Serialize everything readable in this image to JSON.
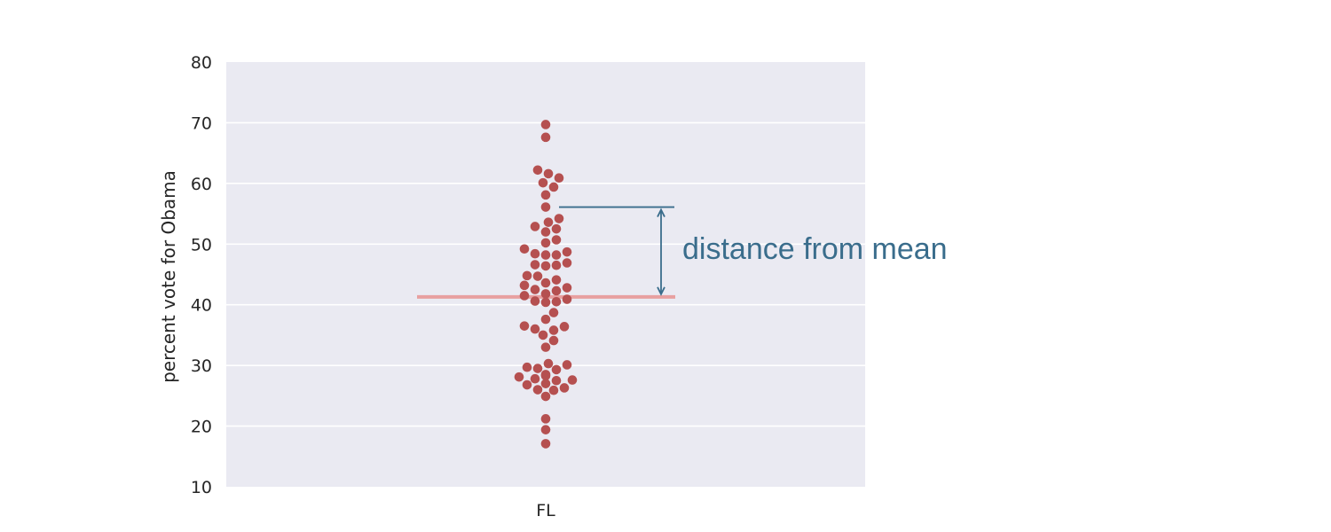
{
  "chart_data": {
    "type": "scatter",
    "subtype": "swarm",
    "title": "",
    "xlabel": "",
    "ylabel": "percent vote for Obama",
    "categories": [
      "FL"
    ],
    "ylim": [
      10,
      80
    ],
    "yticks": [
      10,
      20,
      30,
      40,
      50,
      60,
      70,
      80
    ],
    "grid": true,
    "point_color": "#b55050",
    "background_color": "#eaeaf2",
    "values": [
      17.1,
      19.4,
      21.2,
      24.9,
      25.9,
      26.0,
      26.3,
      26.8,
      27.0,
      27.5,
      27.6,
      27.8,
      28.1,
      28.3,
      28.5,
      29.3,
      29.5,
      29.7,
      30.1,
      30.3,
      33.0,
      34.1,
      35.0,
      35.8,
      36.0,
      36.4,
      36.5,
      37.6,
      38.7,
      40.4,
      40.5,
      40.6,
      40.9,
      41.5,
      41.8,
      42.3,
      42.5,
      42.8,
      43.2,
      43.6,
      44.1,
      44.7,
      44.8,
      46.4,
      46.5,
      46.6,
      46.9,
      48.2,
      48.2,
      48.4,
      48.7,
      49.2,
      50.2,
      50.7,
      52.0,
      52.5,
      52.9,
      53.6,
      54.2,
      56.1,
      58.1,
      59.4,
      60.1,
      60.9,
      61.6,
      62.2,
      67.6,
      69.7
    ],
    "mean": 41.3,
    "mean_line_color": "#e8a0a0",
    "highlight_value": 56.1,
    "annotation": {
      "text": "distance from mean",
      "color": "#3a6d8c"
    }
  }
}
